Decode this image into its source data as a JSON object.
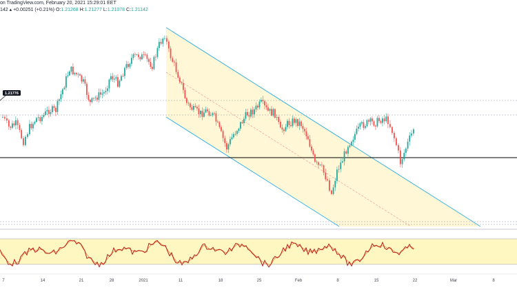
{
  "header": {
    "line1": "on TradingView.com, February 20, 2021 15:29:01 EET",
    "line2_change": "142 ▴ +0.00251 (+0.21%)",
    "o_label": "O:",
    "o_value": "1.21268",
    "h_label": "H:",
    "h_value": "1.21277",
    "l_label": "L:",
    "l_value": "1.21078",
    "c_label": "C:",
    "c_value": "1.21142"
  },
  "price_tag": "1.21776",
  "colors": {
    "up_candle": "#26a69a",
    "down_candle": "#ef5350",
    "channel_line": "#3bb3e4",
    "channel_fill": "#fff7d6",
    "midline": "#f4a6a6",
    "stoch_band": "#fff7c2",
    "stoch_k": "#b71c1c",
    "stoch_d": "#e6a25a",
    "support_line": "#000000"
  },
  "chart_data": {
    "type": "candlestick",
    "x_ticks": [
      "7",
      "14",
      "21",
      "28",
      "2021",
      "11",
      "18",
      "25",
      "Feb",
      "8",
      "15",
      "22",
      "Mar",
      "8"
    ],
    "annotations": [
      "descending price channel",
      "horizontal support line",
      "dashed horizontal levels"
    ],
    "indicator": "stochastic oscillator"
  }
}
